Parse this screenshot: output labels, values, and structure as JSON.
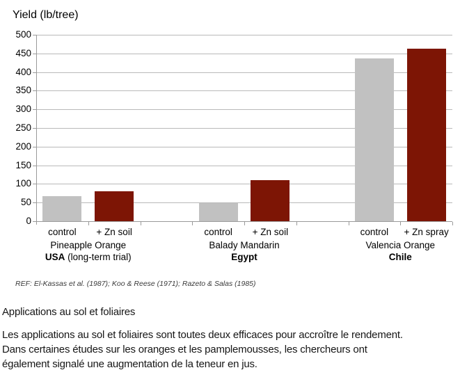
{
  "chart_data": {
    "type": "bar",
    "title": "Yield (lb/tree)",
    "ylabel": "Yield (lb/tree)",
    "ylim": [
      0,
      500
    ],
    "ytick_step": 50,
    "grid": true,
    "legend": "none",
    "series": [
      {
        "name": "control",
        "color": "#c1c1c1"
      },
      {
        "name": "+ Zn treatment",
        "color": "#7d1505"
      }
    ],
    "groups": [
      {
        "variety": "Pineapple Orange",
        "country": "USA",
        "country_note": " (long-term trial)",
        "bars": [
          {
            "label": "control",
            "value": 68,
            "color": "#c1c1c1"
          },
          {
            "label": "+ Zn soil",
            "value": 80,
            "color": "#7d1505"
          }
        ]
      },
      {
        "variety": "Balady Mandarin",
        "country": "Egypt",
        "country_note": "",
        "bars": [
          {
            "label": "control",
            "value": 48,
            "color": "#c1c1c1"
          },
          {
            "label": "+ Zn soil",
            "value": 110,
            "color": "#7d1505"
          }
        ]
      },
      {
        "variety": "Valencia Orange",
        "country": "Chile",
        "country_note": "",
        "bars": [
          {
            "label": "control",
            "value": 437,
            "color": "#c1c1c1"
          },
          {
            "label": "+ Zn spray",
            "value": 463,
            "color": "#7d1505"
          }
        ]
      }
    ],
    "reference": "REF: El-Kassas et al. (1987); Koo & Reese (1971); Razeto & Salas (1985)"
  },
  "article": {
    "heading": "Applications au sol et foliaires",
    "lines": [
      "Les applications au sol et foliaires sont toutes deux efficaces pour accroître le rendement.",
      "Dans certaines études sur les oranges et les pamplemousses, les chercheurs ont",
      "également signalé une augmentation de la teneur en jus."
    ]
  }
}
